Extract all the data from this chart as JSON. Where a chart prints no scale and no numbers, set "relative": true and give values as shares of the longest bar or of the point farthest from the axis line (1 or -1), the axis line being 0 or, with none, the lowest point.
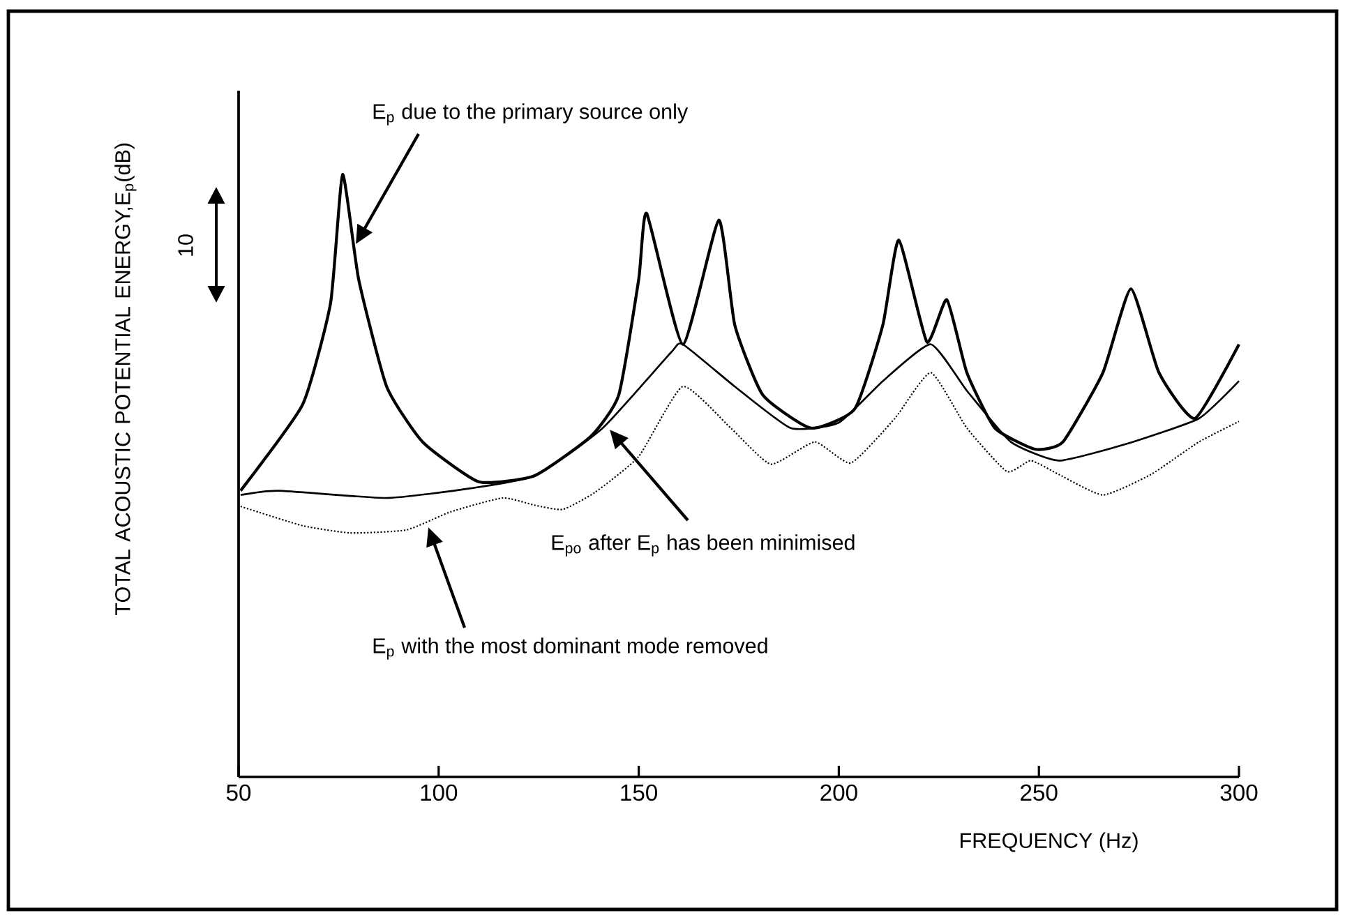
{
  "chart_data": {
    "type": "line",
    "relative": true,
    "xlabel": "FREQUENCY (Hz)",
    "ylabel": "TOTAL ACOUSTIC POTENTIAL ENERGY,E$_{p}$(dB)",
    "xlim": [
      50,
      300
    ],
    "xticks": [
      50,
      100,
      150,
      200,
      250,
      300
    ],
    "grid": false,
    "marker": "none",
    "annotations": [
      "10",
      "E$_{p}$  due to the primary source only",
      "E$_{po}$ after E$_{p}$ has been minimised",
      "E$_{p}$ with the most dominant mode removed"
    ],
    "series": [
      {
        "color": "#000000",
        "line_style": "solid",
        "x": [
          50.5,
          66,
          73,
          76,
          80,
          87,
          96,
          110,
          124,
          138,
          145,
          150,
          152,
          161,
          170,
          174,
          181,
          193,
          204,
          211,
          215,
          222,
          227,
          232,
          239,
          249,
          256,
          266,
          273,
          280,
          289,
          300
        ],
        "values": [
          0.475,
          0.618,
          0.787,
          1.0,
          0.826,
          0.648,
          0.556,
          0.49,
          0.5,
          0.565,
          0.634,
          0.826,
          0.935,
          0.718,
          0.924,
          0.75,
          0.634,
          0.579,
          0.611,
          0.75,
          0.891,
          0.722,
          0.792,
          0.671,
          0.579,
          0.544,
          0.556,
          0.671,
          0.81,
          0.671,
          0.595,
          0.718
        ]
      },
      {
        "color": "#000000",
        "line_style": "solid",
        "x": [
          50.5,
          60,
          87,
          108,
          124,
          141,
          158,
          161,
          174,
          188,
          200,
          211,
          223,
          232,
          243,
          255,
          272,
          290,
          300
        ],
        "values": [
          0.468,
          0.475,
          0.463,
          0.479,
          0.5,
          0.579,
          0.704,
          0.718,
          0.648,
          0.579,
          0.588,
          0.657,
          0.718,
          0.641,
          0.556,
          0.525,
          0.553,
          0.595,
          0.657
        ]
      },
      {
        "color": "#000000",
        "line_style": "dotted",
        "x": [
          50.5,
          66,
          78,
          92,
          103,
          116,
          124,
          131,
          139,
          150,
          161,
          173,
          183,
          194,
          203,
          214,
          223,
          232,
          242,
          248,
          255,
          266,
          278,
          290,
          300
        ],
        "values": [
          0.449,
          0.417,
          0.405,
          0.41,
          0.44,
          0.463,
          0.451,
          0.444,
          0.472,
          0.532,
          0.648,
          0.579,
          0.519,
          0.556,
          0.521,
          0.595,
          0.671,
          0.579,
          0.507,
          0.525,
          0.502,
          0.468,
          0.502,
          0.556,
          0.59
        ]
      }
    ]
  }
}
